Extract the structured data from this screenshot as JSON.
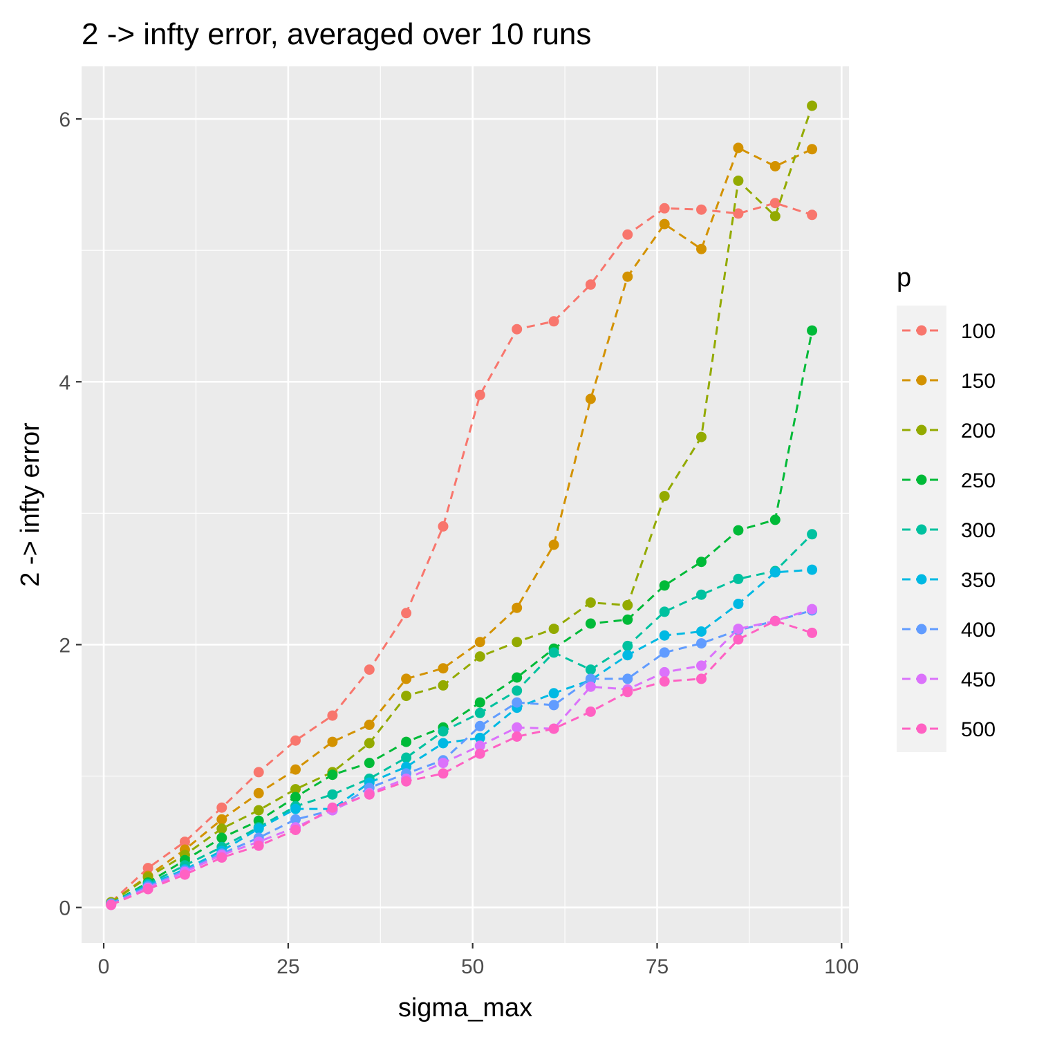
{
  "chart_data": {
    "type": "line",
    "title": "2 -> infty error, averaged over 10 runs",
    "xlabel": "sigma_max",
    "ylabel": "2 -> infty error",
    "xlim": [
      -3,
      101
    ],
    "ylim": [
      -0.27,
      6.4
    ],
    "xticks": [
      0,
      25,
      50,
      75,
      100
    ],
    "yticks": [
      0,
      2,
      4,
      6
    ],
    "xminor": [
      12.5,
      37.5,
      62.5,
      87.5
    ],
    "yminor": [
      1,
      3,
      5
    ],
    "grid": true,
    "line_style": "dashed",
    "legend": {
      "title": "p",
      "position": "right"
    },
    "x": [
      1,
      6,
      11,
      16,
      21,
      26,
      31,
      36,
      41,
      46,
      51,
      56,
      61,
      66,
      71,
      76,
      81,
      86,
      91,
      96
    ],
    "series": [
      {
        "name": "100",
        "color": "#F8766D",
        "values": [
          0.04,
          0.3,
          0.5,
          0.76,
          1.03,
          1.27,
          1.46,
          1.81,
          2.24,
          2.9,
          3.9,
          4.4,
          4.46,
          4.74,
          5.12,
          5.32,
          5.31,
          5.28,
          5.36,
          5.27
        ]
      },
      {
        "name": "150",
        "color": "#D39200",
        "values": [
          0.04,
          0.24,
          0.44,
          0.67,
          0.87,
          1.05,
          1.26,
          1.39,
          1.74,
          1.82,
          2.02,
          2.28,
          2.76,
          3.87,
          4.8,
          5.2,
          5.01,
          5.78,
          5.64,
          5.77
        ]
      },
      {
        "name": "200",
        "color": "#93AA00",
        "values": [
          0.04,
          0.23,
          0.4,
          0.6,
          0.74,
          0.9,
          1.03,
          1.25,
          1.61,
          1.69,
          1.91,
          2.02,
          2.12,
          2.32,
          2.3,
          3.13,
          3.58,
          5.53,
          5.26,
          6.1
        ]
      },
      {
        "name": "250",
        "color": "#00BA38",
        "values": [
          0.03,
          0.19,
          0.36,
          0.53,
          0.66,
          0.84,
          1.01,
          1.1,
          1.26,
          1.37,
          1.56,
          1.75,
          1.97,
          2.16,
          2.19,
          2.45,
          2.63,
          2.87,
          2.95,
          4.39
        ]
      },
      {
        "name": "300",
        "color": "#00C19F",
        "values": [
          0.03,
          0.18,
          0.32,
          0.46,
          0.61,
          0.77,
          0.86,
          0.98,
          1.14,
          1.34,
          1.48,
          1.65,
          1.94,
          1.81,
          1.99,
          2.25,
          2.38,
          2.5,
          2.56,
          2.84
        ]
      },
      {
        "name": "350",
        "color": "#00B9E3",
        "values": [
          0.03,
          0.17,
          0.29,
          0.43,
          0.6,
          0.75,
          0.75,
          0.95,
          1.07,
          1.25,
          1.29,
          1.52,
          1.63,
          1.73,
          1.92,
          2.07,
          2.1,
          2.31,
          2.55,
          2.57
        ]
      },
      {
        "name": "400",
        "color": "#619CFF",
        "values": [
          0.03,
          0.16,
          0.28,
          0.41,
          0.53,
          0.67,
          0.74,
          0.91,
          1.02,
          1.12,
          1.38,
          1.56,
          1.54,
          1.74,
          1.74,
          1.94,
          2.01,
          2.11,
          2.18,
          2.26
        ]
      },
      {
        "name": "450",
        "color": "#DB72FB",
        "values": [
          0.02,
          0.15,
          0.27,
          0.4,
          0.5,
          0.61,
          0.74,
          0.87,
          0.98,
          1.1,
          1.23,
          1.37,
          1.36,
          1.68,
          1.66,
          1.79,
          1.84,
          2.12,
          2.18,
          2.27
        ]
      },
      {
        "name": "500",
        "color": "#FF61C3",
        "values": [
          0.02,
          0.14,
          0.25,
          0.38,
          0.47,
          0.59,
          0.76,
          0.86,
          0.96,
          1.02,
          1.17,
          1.3,
          1.36,
          1.49,
          1.64,
          1.72,
          1.74,
          2.04,
          2.18,
          2.09
        ]
      }
    ]
  }
}
